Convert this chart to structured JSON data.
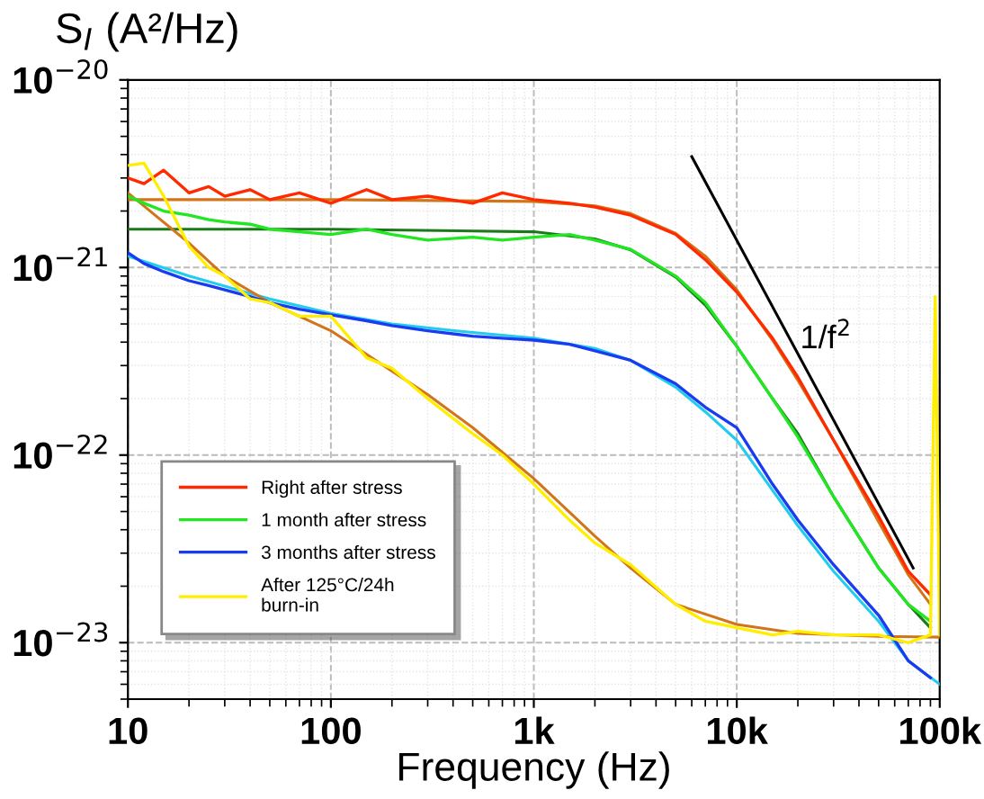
{
  "chart_data": {
    "type": "line",
    "ylabel": "S$_{I}$ (A²/Hz)",
    "xlabel": "Frequency (Hz)",
    "log": "xy",
    "x": [
      10,
      12,
      15,
      20,
      25,
      30,
      40,
      50,
      70,
      100,
      150,
      200,
      300,
      500,
      700,
      1000,
      1500,
      2000,
      3000,
      5000,
      7000,
      10000,
      15000,
      20000,
      30000,
      50000,
      70000,
      90000
    ],
    "xlim": [
      10,
      100000
    ],
    "xticks": [
      10,
      100,
      {
        "value": 1000,
        "label": "1k"
      },
      {
        "value": 10000,
        "label": "10k"
      },
      {
        "value": 100000,
        "label": "100k"
      }
    ],
    "ylim": [
      5e-24,
      1e-20
    ],
    "yticks": [
      {
        "value": 1e-23,
        "label": "10$^{−23}$"
      },
      {
        "value": 1e-22,
        "label": "10$^{−22}$"
      },
      {
        "value": 1e-21,
        "label": "10$^{−21}$"
      },
      {
        "value": 1e-20,
        "label": "10$^{−20}$"
      }
    ],
    "grid": true,
    "legend": "bottom left",
    "series": [
      {
        "name": "Right after stress",
        "color": "#ff2a00",
        "values": [
          3e-21,
          2.8e-21,
          3.3e-21,
          2.5e-21,
          2.7e-21,
          2.4e-21,
          2.6e-21,
          2.3e-21,
          2.5e-21,
          2.2e-21,
          2.6e-21,
          2.3e-21,
          2.4e-21,
          2.2e-21,
          2.5e-21,
          2.3e-21,
          2.2e-21,
          2.1e-21,
          1.9e-21,
          1.5e-21,
          1.1e-21,
          7.4e-22,
          4.2e-22,
          2.6e-22,
          1.2e-22,
          4.7e-23,
          2.4e-23,
          1.8e-23
        ]
      },
      {
        "name": "1 month after stress",
        "color": "#22e622",
        "values": [
          2.4e-21,
          2.2e-21,
          2e-21,
          1.9e-21,
          1.8e-21,
          1.75e-21,
          1.7e-21,
          1.6e-21,
          1.55e-21,
          1.5e-21,
          1.6e-21,
          1.5e-21,
          1.4e-21,
          1.45e-21,
          1.4e-21,
          1.45e-21,
          1.5e-21,
          1.4e-21,
          1.25e-21,
          9e-22,
          6.5e-22,
          3.8e-22,
          2e-22,
          1.25e-22,
          6e-23,
          2.5e-23,
          1.6e-23,
          1.3e-23
        ]
      },
      {
        "name": "3 months after stress",
        "color": "#1a3cf0",
        "values": [
          1.2e-21,
          1.05e-21,
          9.5e-22,
          8.5e-22,
          8e-22,
          7.6e-22,
          7e-22,
          6.5e-22,
          6e-22,
          5.6e-22,
          5.2e-22,
          4.9e-22,
          4.6e-22,
          4.3e-22,
          4.2e-22,
          4.1e-22,
          3.9e-22,
          3.6e-22,
          3.2e-22,
          2.4e-22,
          1.8e-22,
          1.4e-22,
          7e-23,
          4.5e-23,
          2.6e-23,
          1.4e-23,
          8e-24,
          6.5e-24
        ]
      },
      {
        "name": "After 125°C/24h\nburn-in",
        "color": "#ffee00",
        "x": [
          10,
          12,
          15,
          20,
          25,
          30,
          40,
          50,
          70,
          100,
          150,
          200,
          300,
          500,
          700,
          1000,
          1500,
          2000,
          3000,
          5000,
          7000,
          10000,
          15000,
          20000,
          30000,
          50000,
          70000,
          90000,
          95000,
          100000
        ],
        "values": [
          3.5e-21,
          3.6e-21,
          2.4e-21,
          1.3e-21,
          1e-21,
          9e-22,
          6.8e-22,
          6.5e-22,
          5.5e-22,
          5.5e-22,
          3.3e-22,
          2.9e-22,
          2e-22,
          1.3e-22,
          1e-22,
          7e-23,
          4.5e-23,
          3.4e-23,
          2.6e-23,
          1.6e-23,
          1.3e-23,
          1.2e-23,
          1.1e-23,
          1.15e-23,
          1.1e-23,
          1.1e-23,
          1e-23,
          1.1e-23,
          7e-22,
          1.1e-23
        ]
      },
      {
        "color": "#d2751a",
        "x": [
          10,
          100,
          1000,
          2000,
          3000,
          5000,
          7000,
          10000,
          15000,
          20000,
          30000,
          50000,
          70000,
          90000
        ],
        "values": [
          2.3e-21,
          2.3e-21,
          2.25e-21,
          2.13e-21,
          1.94e-21,
          1.52e-21,
          1.15e-21,
          7.6e-22,
          4.1e-22,
          2.5e-22,
          1.2e-22,
          4.4e-23,
          2.3e-23,
          1.6e-23
        ]
      },
      {
        "color": "#1a7a1a",
        "x": [
          10,
          100,
          1000,
          2000,
          3000,
          5000,
          7000,
          10000,
          15000,
          20000,
          30000,
          50000,
          70000,
          90000
        ],
        "values": [
          1.6e-21,
          1.6e-21,
          1.55e-21,
          1.42e-21,
          1.24e-21,
          8.9e-22,
          6.3e-22,
          3.8e-22,
          2e-22,
          1.3e-22,
          6e-23,
          2.5e-23,
          1.6e-23,
          1.2e-23
        ]
      },
      {
        "color": "#22ccee",
        "x": [
          10,
          20,
          50,
          100,
          200,
          500,
          1000,
          2000,
          3000,
          5000,
          7000,
          10000,
          15000,
          20000,
          30000,
          50000,
          70000,
          100000
        ],
        "values": [
          1.15e-21,
          9e-22,
          6.8e-22,
          5.7e-22,
          5e-22,
          4.5e-22,
          4.2e-22,
          3.7e-22,
          3.2e-22,
          2.3e-22,
          1.7e-22,
          1.2e-22,
          6.5e-23,
          4.2e-23,
          2.4e-23,
          1.3e-23,
          8e-24,
          6e-24
        ]
      },
      {
        "color": "#d2751a",
        "x": [
          10,
          20,
          30,
          50,
          100,
          200,
          300,
          500,
          1000,
          2000,
          3000,
          5000,
          10000,
          20000,
          50000,
          100000
        ],
        "values": [
          2.5e-21,
          1.35e-21,
          9e-22,
          6.5e-22,
          4.6e-22,
          2.8e-22,
          2.1e-22,
          1.4e-22,
          7.5e-23,
          3.7e-23,
          2.5e-23,
          1.6e-23,
          1.25e-23,
          1.12e-23,
          1.08e-23,
          1.07e-23
        ]
      },
      {
        "color": "#000000",
        "x": [
          6000,
          74000
        ],
        "values": [
          3.9e-21,
          2.5e-23
        ]
      }
    ],
    "annotations": [
      "1/f$^{2}$"
    ]
  }
}
